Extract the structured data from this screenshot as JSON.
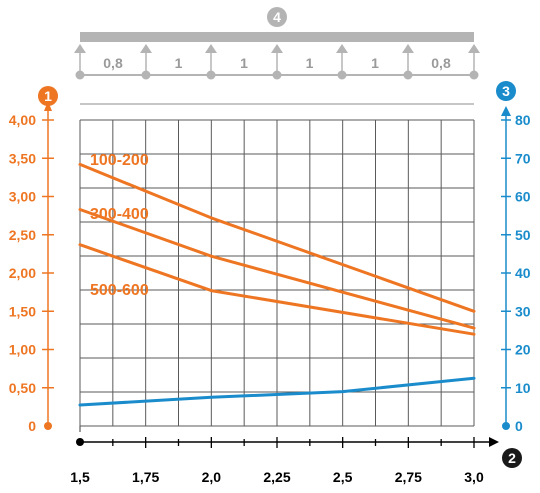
{
  "chart_data": {
    "type": "line",
    "x": [
      1.5,
      1.75,
      2.0,
      2.25,
      2.5,
      2.75,
      3.0
    ],
    "x_tick_labels": [
      "1,5",
      "1,75",
      "2,0",
      "2,25",
      "2,5",
      "2,75",
      "3,0"
    ],
    "xlim": [
      1.5,
      3.0
    ],
    "ylim_left": [
      0,
      4.0
    ],
    "left_tick_values": [
      0,
      0.5,
      1.0,
      1.5,
      2.0,
      2.5,
      3.0,
      3.5,
      4.0
    ],
    "left_tick_labels": [
      "0",
      "0,50",
      "1,00",
      "1,50",
      "2,00",
      "2,50",
      "3,00",
      "3,50",
      "4,00"
    ],
    "ylim_right": [
      0,
      80
    ],
    "right_tick_values": [
      0,
      10,
      20,
      30,
      40,
      50,
      60,
      70,
      80
    ],
    "right_tick_labels": [
      "0",
      "10",
      "20",
      "30",
      "40",
      "50",
      "60",
      "70",
      "80"
    ],
    "series": [
      {
        "name": "100-200",
        "axis": "left",
        "color": "#ee7623",
        "x": [
          1.5,
          2.0,
          3.0
        ],
        "values": [
          3.42,
          2.72,
          1.5
        ]
      },
      {
        "name": "300-400",
        "axis": "left",
        "color": "#ee7623",
        "x": [
          1.5,
          2.0,
          3.0
        ],
        "values": [
          2.83,
          2.22,
          1.28
        ]
      },
      {
        "name": "500-600",
        "axis": "left",
        "color": "#ee7623",
        "x": [
          1.5,
          2.0,
          3.0
        ],
        "values": [
          2.37,
          1.77,
          1.2
        ]
      },
      {
        "axis": "right",
        "color": "#1a8ccc",
        "x": [
          1.5,
          2.0,
          2.5,
          3.0
        ],
        "values": [
          5.5,
          7.5,
          9.0,
          12.5
        ]
      }
    ],
    "markers": {
      "left_axis": "1",
      "x_axis": "2",
      "right_axis": "3",
      "span": "4"
    },
    "span_labels": [
      "0,8",
      "1",
      "1",
      "1",
      "1",
      "0,8"
    ],
    "grid": true
  },
  "colors": {
    "orange": "#ee7623",
    "blue": "#1a8ccc",
    "grid": "#5a5a5a",
    "beam": "#b4b4b4",
    "span_text": "#9a9a9a"
  }
}
